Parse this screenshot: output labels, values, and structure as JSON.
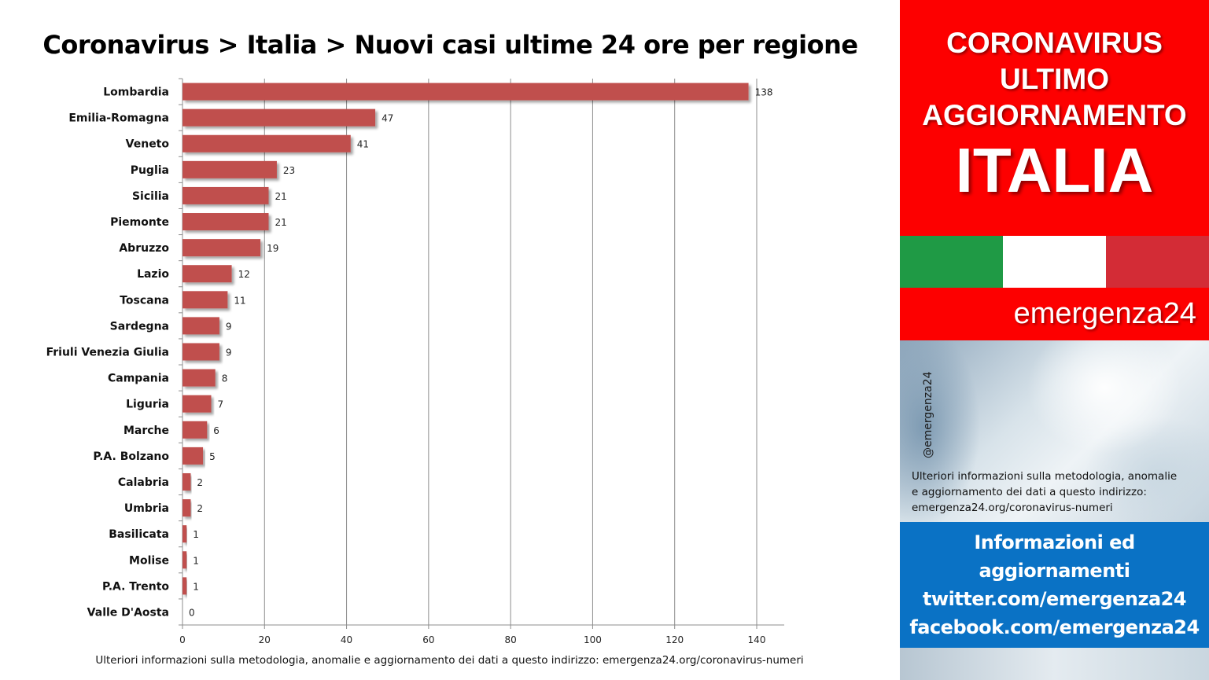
{
  "chart_data": {
    "type": "bar",
    "orientation": "horizontal",
    "title": "Coronavirus > Italia > Nuovi casi ultime 24 ore per regione",
    "categories": [
      "Lombardia",
      "Emilia-Romagna",
      "Veneto",
      "Puglia",
      "Sicilia",
      "Piemonte",
      "Abruzzo",
      "Lazio",
      "Toscana",
      "Sardegna",
      "Friuli Venezia Giulia",
      "Campania",
      "Liguria",
      "Marche",
      "P.A. Bolzano",
      "Calabria",
      "Umbria",
      "Basilicata",
      "Molise",
      "P.A. Trento",
      "Valle D'Aosta"
    ],
    "values": [
      138,
      47,
      41,
      23,
      21,
      21,
      19,
      12,
      11,
      9,
      9,
      8,
      7,
      6,
      5,
      2,
      2,
      1,
      1,
      1,
      0
    ],
    "xlim": [
      0,
      140
    ],
    "xticks": [
      0,
      20,
      40,
      60,
      80,
      100,
      120,
      140
    ],
    "grid": true,
    "bar_color": "#c0504d"
  },
  "footnote": "Ulteriori informazioni sulla metodologia, anomalie e aggiornamento dei dati a questo indirizzo: emergenza24.org/coronavirus-numeri",
  "panel": {
    "header_lines": [
      "CORONAVIRUS",
      "ULTIMO",
      "AGGIORNAMENTO"
    ],
    "country": "ITALIA",
    "flag_colors": [
      "#1f9a45",
      "#ffffff",
      "#d32c36"
    ],
    "brand": "emergenza24",
    "handle": "@emergenza24",
    "info_lines": [
      "Ulteriori informazioni sulla metodologia, anomalie",
      "e aggiornamento dei dati a questo indirizzo:",
      "emergenza24.org/coronavirus-numeri"
    ],
    "social_lines": [
      "Informazioni ed",
      "aggiornamenti",
      "twitter.com/emergenza24",
      "facebook.com/emergenza24"
    ]
  }
}
